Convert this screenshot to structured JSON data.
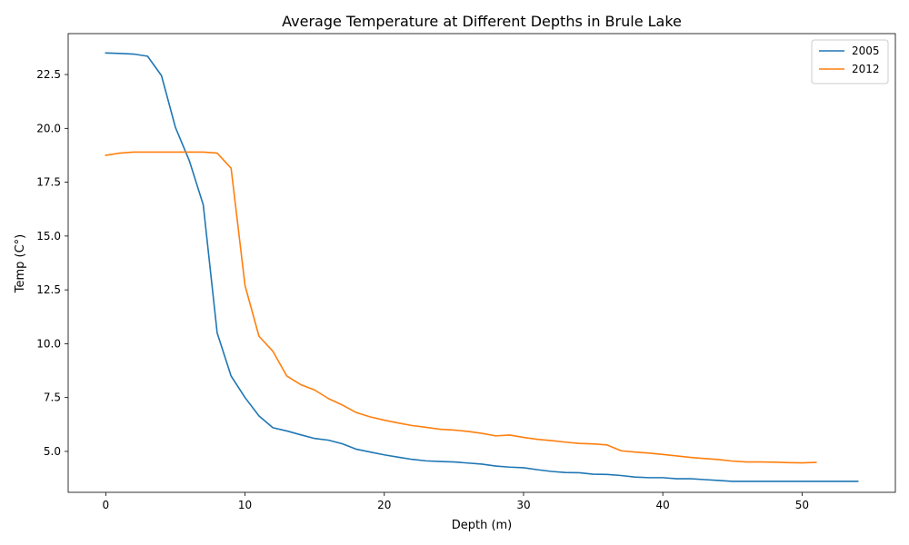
{
  "chart_data": {
    "type": "line",
    "title": "Average Temperature at Different Depths in Brule Lake",
    "xlabel": "Depth (m)",
    "ylabel": "Temp (C°)",
    "xlim": [
      -2.7,
      56.7
    ],
    "ylim": [
      3.1,
      24.4
    ],
    "xticks": [
      0,
      10,
      20,
      30,
      40,
      50
    ],
    "yticks": [
      5.0,
      7.5,
      10.0,
      12.5,
      15.0,
      17.5,
      20.0,
      22.5
    ],
    "xtick_labels": [
      "0",
      "10",
      "20",
      "30",
      "40",
      "50"
    ],
    "ytick_labels": [
      "5.0",
      "7.5",
      "10.0",
      "12.5",
      "15.0",
      "17.5",
      "20.0",
      "22.5"
    ],
    "grid": false,
    "legend_position": "top-right",
    "series": [
      {
        "name": "2005",
        "color": "#1f77b4",
        "x": [
          0,
          1,
          2,
          3,
          4,
          5,
          6,
          7,
          8,
          9,
          10,
          11,
          12,
          13,
          14,
          15,
          16,
          17,
          18,
          19,
          20,
          21,
          22,
          23,
          24,
          25,
          26,
          27,
          28,
          29,
          30,
          31,
          32,
          33,
          34,
          35,
          36,
          37,
          38,
          39,
          40,
          41,
          42,
          43,
          44,
          45,
          46,
          47,
          48,
          49,
          50,
          51,
          52,
          53,
          54
        ],
        "y": [
          23.5,
          23.48,
          23.45,
          23.35,
          22.45,
          20.05,
          18.5,
          16.45,
          10.5,
          8.5,
          7.5,
          6.65,
          6.1,
          5.95,
          5.77,
          5.6,
          5.52,
          5.35,
          5.1,
          4.97,
          4.84,
          4.73,
          4.63,
          4.56,
          4.53,
          4.51,
          4.46,
          4.41,
          4.32,
          4.27,
          4.24,
          4.15,
          4.07,
          4.02,
          4.01,
          3.94,
          3.93,
          3.88,
          3.81,
          3.78,
          3.78,
          3.73,
          3.73,
          3.69,
          3.65,
          3.61,
          3.61,
          3.61,
          3.61,
          3.61,
          3.61,
          3.61,
          3.61,
          3.61,
          3.61
        ]
      },
      {
        "name": "2012",
        "color": "#ff7f0e",
        "x": [
          0,
          1,
          2,
          3,
          4,
          5,
          6,
          7,
          8,
          9,
          10,
          11,
          12,
          13,
          14,
          15,
          16,
          17,
          18,
          19,
          20,
          21,
          22,
          23,
          24,
          25,
          26,
          27,
          28,
          29,
          30,
          31,
          32,
          33,
          34,
          35,
          36,
          37,
          38,
          39,
          40,
          41,
          42,
          43,
          44,
          45,
          46,
          47,
          48,
          49,
          50,
          51
        ],
        "y": [
          18.75,
          18.85,
          18.9,
          18.9,
          18.9,
          18.9,
          18.9,
          18.9,
          18.85,
          18.15,
          12.7,
          10.35,
          9.65,
          8.5,
          8.1,
          7.85,
          7.45,
          7.15,
          6.8,
          6.6,
          6.45,
          6.32,
          6.2,
          6.12,
          6.03,
          5.99,
          5.93,
          5.84,
          5.72,
          5.76,
          5.65,
          5.56,
          5.5,
          5.43,
          5.37,
          5.35,
          5.3,
          5.03,
          4.97,
          4.92,
          4.86,
          4.79,
          4.72,
          4.67,
          4.62,
          4.55,
          4.51,
          4.51,
          4.5,
          4.48,
          4.47,
          4.49
        ]
      }
    ]
  }
}
